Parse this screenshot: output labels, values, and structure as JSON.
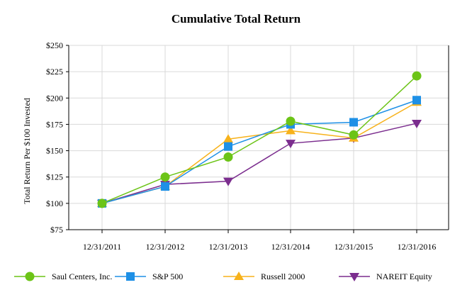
{
  "chart_data": {
    "type": "line",
    "title": "Cumulative Total Return",
    "xlabel": "",
    "ylabel": "Total Return Per $100 Invested",
    "x": [
      "12/31/2011",
      "12/31/2012",
      "12/31/2013",
      "12/31/2014",
      "12/31/2015",
      "12/31/2016"
    ],
    "ylim": [
      75,
      250
    ],
    "yticks": [
      75,
      100,
      125,
      150,
      175,
      200,
      225,
      250
    ],
    "ytick_labels": [
      "$75",
      "$100",
      "$125",
      "$150",
      "$175",
      "$200",
      "$225",
      "$250"
    ],
    "grid": true,
    "legend_position": "bottom",
    "series": [
      {
        "name": "Saul Centers, Inc.",
        "values": [
          100,
          125,
          144,
          178,
          165,
          221
        ],
        "color": "#6cc417",
        "marker": "circle"
      },
      {
        "name": "S&P 500",
        "values": [
          100,
          116,
          154,
          175,
          177,
          198
        ],
        "color": "#1e90e6",
        "marker": "square"
      },
      {
        "name": "Russell 2000",
        "values": [
          100,
          116,
          161,
          169,
          162,
          196
        ],
        "color": "#f7b21b",
        "marker": "triangle-up"
      },
      {
        "name": "NAREIT Equity",
        "values": [
          100,
          118,
          121,
          157,
          162,
          176
        ],
        "color": "#7b2d8e",
        "marker": "triangle-down"
      }
    ]
  }
}
